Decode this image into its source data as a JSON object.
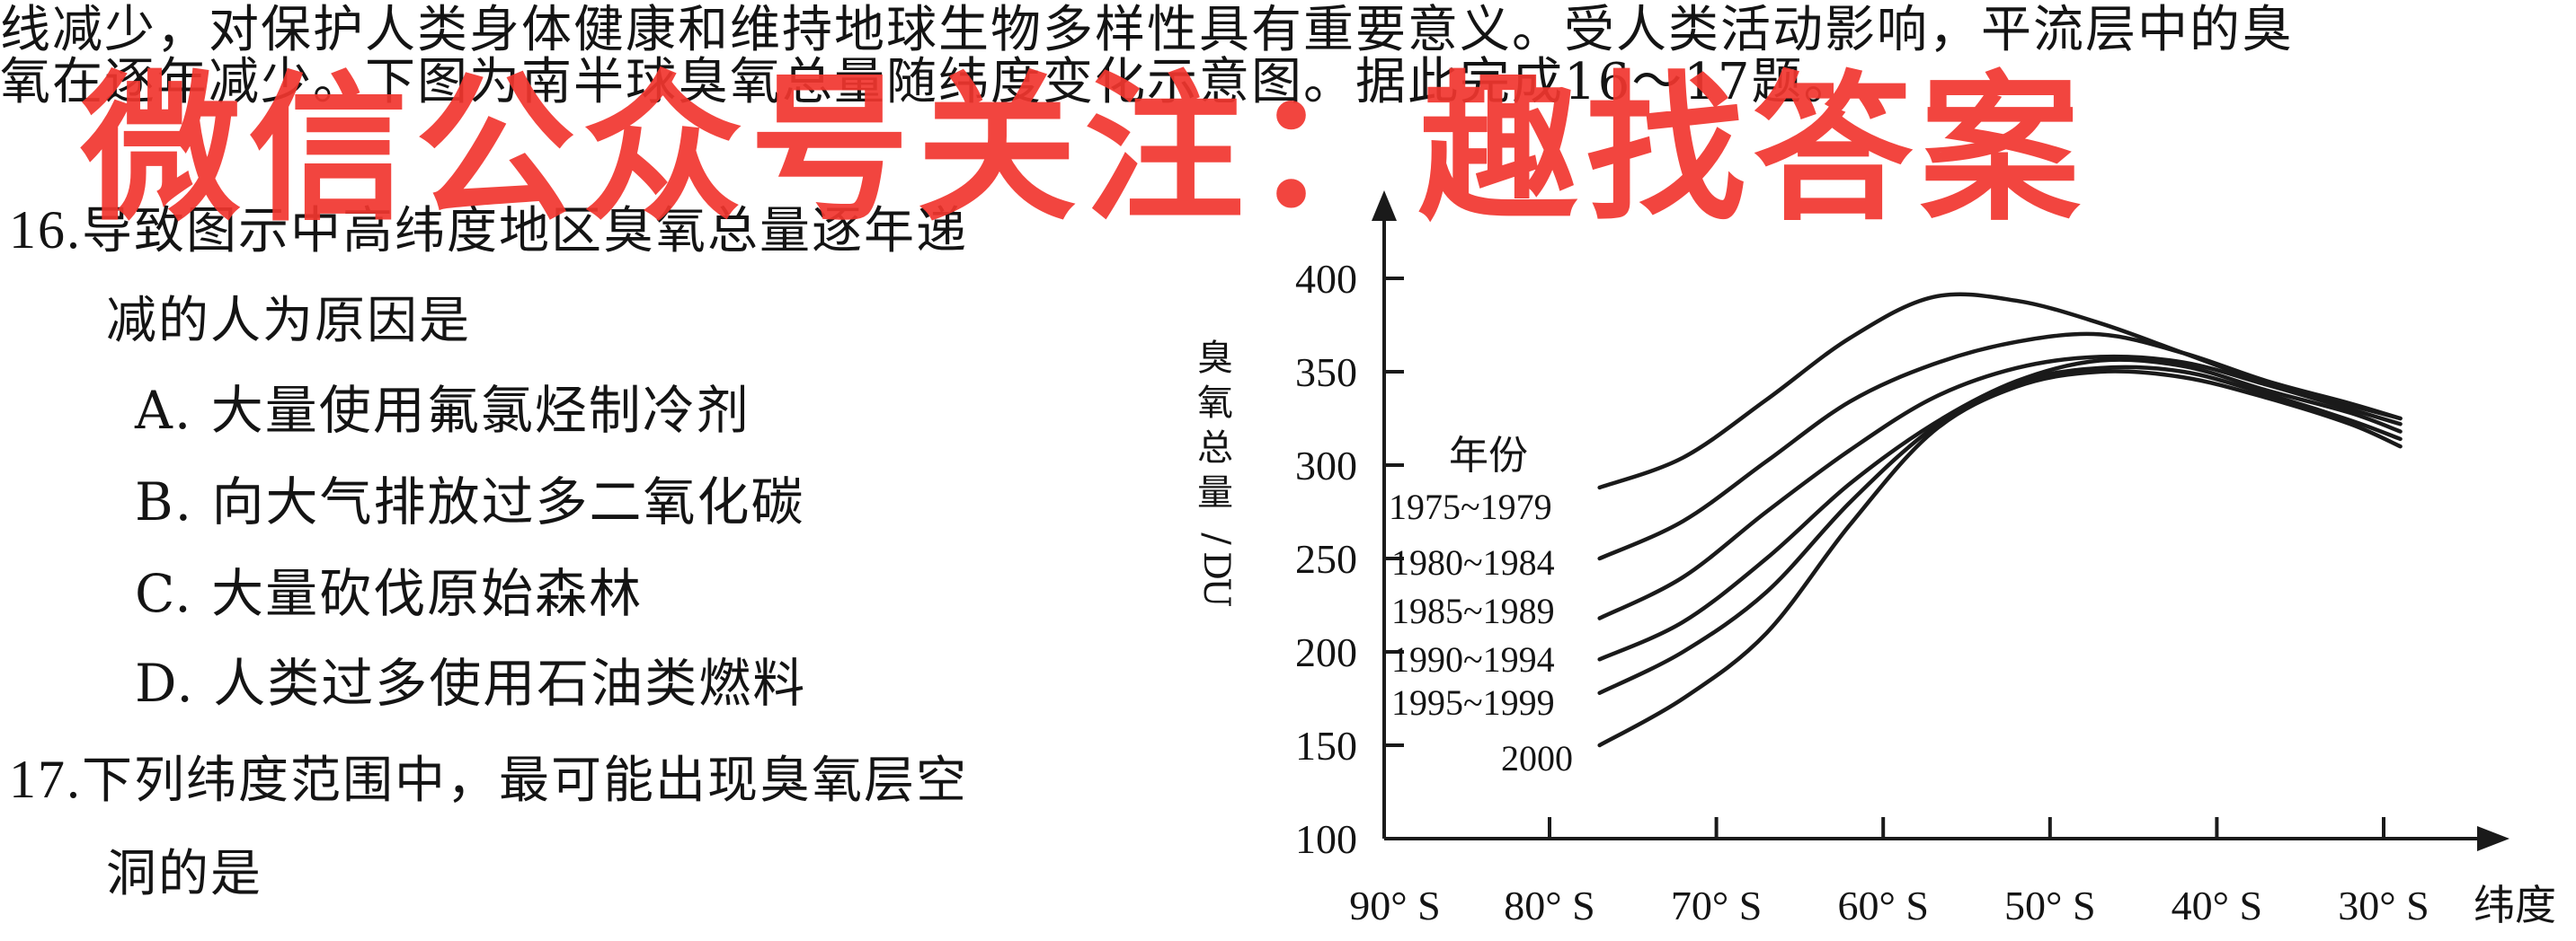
{
  "passage": {
    "line1": "线减少，对保护人类身体健康和维持地球生物多样性具有重要意义。受人类活动影响，平流层中的臭",
    "line2": "氧在逐年减少。下图为南半球臭氧总量随纬度变化示意图。据此完成16～17题。"
  },
  "questions": [
    {
      "number": "16.",
      "stem_line1": "导致图示中高纬度地区臭氧总量逐年递",
      "stem_line2": "减的人为原因是",
      "options": [
        "A. 大量使用氟氯烃制冷剂",
        "B. 向大气排放过多二氧化碳",
        "C. 大量砍伐原始森林",
        "D. 人类过多使用石油类燃料"
      ]
    },
    {
      "number": "17.",
      "stem_line1": "下列纬度范围中，最可能出现臭氧层空",
      "stem_line2": "洞的是"
    }
  ],
  "watermark": "微信公众号关注：趣找答案",
  "chart_data": {
    "type": "line",
    "ylabel": "臭氧总量/DU",
    "xlabel": "纬度",
    "legend_title": "年份",
    "legend_placement": "left-inside",
    "y_ticks": [
      100,
      150,
      200,
      250,
      300,
      350,
      400
    ],
    "x_ticks": [
      "90° S",
      "80° S",
      "70° S",
      "60° S",
      "50° S",
      "40° S",
      "30° S"
    ],
    "x_values_deg_s": [
      90,
      80,
      70,
      60,
      50,
      40,
      30
    ],
    "ylim": [
      100,
      400
    ],
    "xlim_deg_s": [
      90,
      27
    ],
    "color": "#1a1a1a",
    "series": [
      {
        "name": "1975~1979",
        "x": [
          77,
          72,
          67,
          62,
          57,
          52,
          47,
          42,
          37,
          32,
          29
        ],
        "y": [
          288,
          304,
          335,
          368,
          390,
          388,
          376,
          360,
          344,
          332,
          325
        ]
      },
      {
        "name": "1980~1984",
        "x": [
          77,
          72,
          67,
          62,
          57,
          52,
          47,
          42,
          37,
          32,
          29
        ],
        "y": [
          250,
          270,
          302,
          334,
          354,
          366,
          370,
          360,
          345,
          333,
          325
        ]
      },
      {
        "name": "1985~1989",
        "x": [
          77,
          72,
          67,
          62,
          57,
          52,
          47,
          42,
          37,
          32,
          29
        ],
        "y": [
          218,
          240,
          275,
          308,
          336,
          352,
          358,
          355,
          343,
          330,
          322
        ]
      },
      {
        "name": "1990~1994",
        "x": [
          77,
          72,
          67,
          62,
          57,
          52,
          47,
          42,
          37,
          32,
          29
        ],
        "y": [
          196,
          216,
          250,
          290,
          322,
          345,
          356,
          353,
          340,
          328,
          318
        ]
      },
      {
        "name": "1995~1999",
        "x": [
          77,
          72,
          67,
          62,
          57,
          52,
          47,
          42,
          37,
          32,
          29
        ],
        "y": [
          178,
          200,
          232,
          280,
          320,
          344,
          352,
          350,
          338,
          324,
          314
        ]
      },
      {
        "name": "2000",
        "x": [
          77,
          72,
          67,
          62,
          57,
          52,
          47,
          42,
          37,
          32,
          29
        ],
        "y": [
          150,
          175,
          210,
          268,
          318,
          342,
          350,
          347,
          336,
          322,
          310
        ]
      }
    ]
  }
}
